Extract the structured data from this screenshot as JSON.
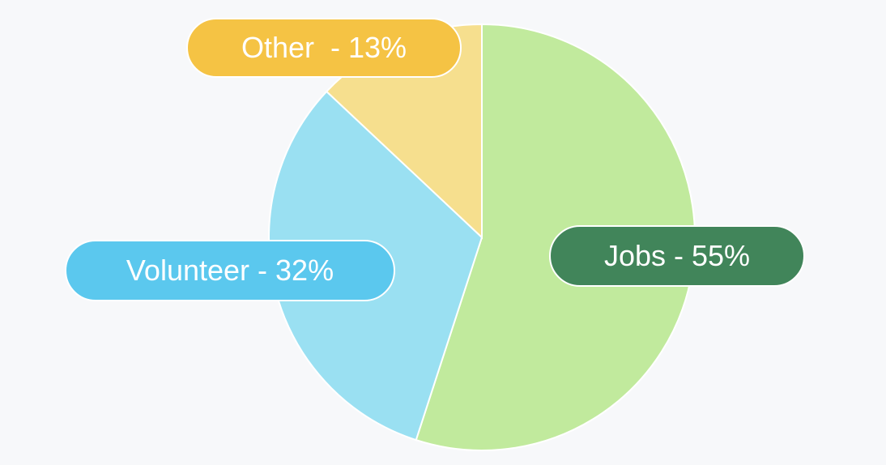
{
  "chart_data": {
    "type": "pie",
    "slices": [
      {
        "label": "Jobs",
        "value": 55,
        "display": "Jobs - 55%",
        "slice_color": "#c1ea9d",
        "label_color": "#41855a"
      },
      {
        "label": "Volunteer",
        "value": 32,
        "display": "Volunteer - 32%",
        "slice_color": "#9ae0f2",
        "label_color": "#5bc8ee"
      },
      {
        "label": "Other",
        "value": 13,
        "display": "Other  - 13%",
        "slice_color": "#f6df8e",
        "label_color": "#f5c344"
      }
    ],
    "start_angle": "12 o'clock",
    "direction": "clockwise"
  }
}
